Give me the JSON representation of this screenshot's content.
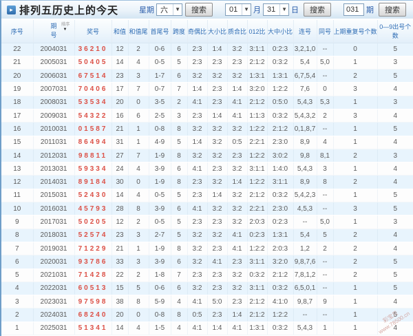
{
  "header": {
    "title": "排列五历史上的今天",
    "week_label": "星期",
    "week_value": "六",
    "search_label": "搜索",
    "month_value": "01",
    "month_label": "月",
    "day_value": "31",
    "day_label": "日",
    "issue_value": "031",
    "issue_label": "期"
  },
  "table": {
    "sort_label": "排序",
    "columns": [
      "序号",
      "期号",
      "奖号",
      "和值",
      "和值尾",
      "首尾号",
      "跨度",
      "奇偶比",
      "大小比",
      "质合比",
      "012比",
      "大中小比",
      "连号",
      "同号",
      "上期重复号个数",
      "0—9出号个数"
    ],
    "rows": [
      [
        "22",
        "2004031",
        "36210",
        "12",
        "2",
        "0-6",
        "6",
        "2:3",
        "1:4",
        "3:2",
        "3:1:1",
        "0:2:3",
        "3,2,1,0",
        "--",
        "0",
        "5"
      ],
      [
        "21",
        "2005031",
        "50405",
        "14",
        "4",
        "0-5",
        "5",
        "2:3",
        "2:3",
        "2:3",
        "2:1:2",
        "0:3:2",
        "5,4",
        "5,0",
        "1",
        "3"
      ],
      [
        "20",
        "2006031",
        "67514",
        "23",
        "3",
        "1-7",
        "6",
        "3:2",
        "3:2",
        "3:2",
        "1:3:1",
        "1:3:1",
        "6,7,5,4",
        "--",
        "2",
        "5"
      ],
      [
        "19",
        "2007031",
        "70406",
        "17",
        "7",
        "0-7",
        "7",
        "1:4",
        "2:3",
        "1:4",
        "3:2:0",
        "1:2:2",
        "7,6",
        "0",
        "3",
        "4"
      ],
      [
        "18",
        "2008031",
        "53534",
        "20",
        "0",
        "3-5",
        "2",
        "4:1",
        "2:3",
        "4:1",
        "2:1:2",
        "0:5:0",
        "5,4,3",
        "5,3",
        "1",
        "3"
      ],
      [
        "17",
        "2009031",
        "54322",
        "16",
        "6",
        "2-5",
        "3",
        "2:3",
        "1:4",
        "4:1",
        "1:1:3",
        "0:3:2",
        "5,4,3,2",
        "2",
        "3",
        "4"
      ],
      [
        "16",
        "2010031",
        "01587",
        "21",
        "1",
        "0-8",
        "8",
        "3:2",
        "3:2",
        "3:2",
        "1:2:2",
        "2:1:2",
        "0,1,8,7",
        "--",
        "1",
        "5"
      ],
      [
        "15",
        "2011031",
        "86494",
        "31",
        "1",
        "4-9",
        "5",
        "1:4",
        "3:2",
        "0:5",
        "2:2:1",
        "2:3:0",
        "8,9",
        "4",
        "1",
        "4"
      ],
      [
        "14",
        "2012031",
        "98811",
        "27",
        "7",
        "1-9",
        "8",
        "3:2",
        "3:2",
        "2:3",
        "1:2:2",
        "3:0:2",
        "9,8",
        "8,1",
        "2",
        "3"
      ],
      [
        "13",
        "2013031",
        "59334",
        "24",
        "4",
        "3-9",
        "6",
        "4:1",
        "2:3",
        "3:2",
        "3:1:1",
        "1:4:0",
        "5,4,3",
        "3",
        "1",
        "4"
      ],
      [
        "12",
        "2014031",
        "89184",
        "30",
        "0",
        "1-9",
        "8",
        "2:3",
        "3:2",
        "1:4",
        "1:2:2",
        "3:1:1",
        "8,9",
        "8",
        "2",
        "4"
      ],
      [
        "11",
        "2015031",
        "52430",
        "14",
        "4",
        "0-5",
        "5",
        "2:3",
        "1:4",
        "3:2",
        "2:1:2",
        "0:3:2",
        "5,4,2,3",
        "--",
        "1",
        "5"
      ],
      [
        "10",
        "2016031",
        "45793",
        "28",
        "8",
        "3-9",
        "6",
        "4:1",
        "3:2",
        "3:2",
        "2:2:1",
        "2:3:0",
        "4,5,3",
        "--",
        "3",
        "5"
      ],
      [
        "9",
        "2017031",
        "50205",
        "12",
        "2",
        "0-5",
        "5",
        "2:3",
        "2:3",
        "3:2",
        "2:0:3",
        "0:2:3",
        "--",
        "5,0",
        "1",
        "3"
      ],
      [
        "8",
        "2018031",
        "52574",
        "23",
        "3",
        "2-7",
        "5",
        "3:2",
        "3:2",
        "4:1",
        "0:2:3",
        "1:3:1",
        "5,4",
        "5",
        "2",
        "4"
      ],
      [
        "7",
        "2019031",
        "71229",
        "21",
        "1",
        "1-9",
        "8",
        "3:2",
        "2:3",
        "4:1",
        "1:2:2",
        "2:0:3",
        "1,2",
        "2",
        "2",
        "4"
      ],
      [
        "6",
        "2020031",
        "93786",
        "33",
        "3",
        "3-9",
        "6",
        "3:2",
        "4:1",
        "2:3",
        "3:1:1",
        "3:2:0",
        "9,8,7,6",
        "--",
        "2",
        "5"
      ],
      [
        "5",
        "2021031",
        "71428",
        "22",
        "2",
        "1-8",
        "7",
        "2:3",
        "2:3",
        "3:2",
        "0:3:2",
        "2:1:2",
        "7,8,1,2",
        "--",
        "2",
        "5"
      ],
      [
        "4",
        "2022031",
        "60513",
        "15",
        "5",
        "0-6",
        "6",
        "3:2",
        "2:3",
        "3:2",
        "3:1:1",
        "0:3:2",
        "6,5,0,1",
        "--",
        "1",
        "5"
      ],
      [
        "3",
        "2023031",
        "97598",
        "38",
        "8",
        "5-9",
        "4",
        "4:1",
        "5:0",
        "2:3",
        "2:1:2",
        "4:1:0",
        "9,8,7",
        "9",
        "1",
        "4"
      ],
      [
        "2",
        "2024031",
        "68240",
        "20",
        "0",
        "0-8",
        "8",
        "0:5",
        "2:3",
        "1:4",
        "2:1:2",
        "1:2:2",
        "--",
        "--",
        "1",
        "5"
      ],
      [
        "1",
        "2025031",
        "51341",
        "14",
        "4",
        "1-5",
        "4",
        "4:1",
        "1:4",
        "4:1",
        "1:3:1",
        "0:3:2",
        "5,4,3",
        "1",
        "1",
        "4"
      ]
    ]
  },
  "watermark": {
    "line1": "彩宝贝",
    "line2": "www.78500.cn"
  },
  "colors": {
    "prize_red": "#dc5046",
    "row_alt_blue": "#e8f4fd",
    "header_text_blue": "#2f6db5"
  }
}
